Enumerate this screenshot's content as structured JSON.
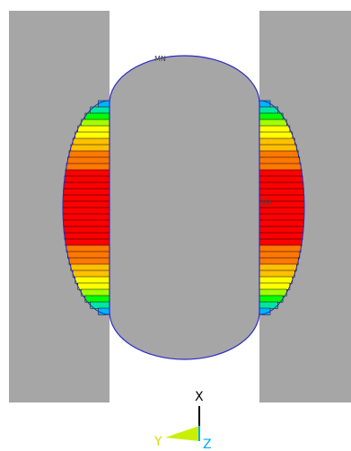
{
  "annotations": {
    "max_label": "MX",
    "mn_label": "MN"
  },
  "triad": {
    "x_label": "X",
    "y_label": "Y",
    "z_label": "Z",
    "x_color": "#000000",
    "y_color": "#d4e000",
    "z_color": "#00a8ff"
  },
  "colors": {
    "plate": "#a6a6a6",
    "cylinder": "#a6a6a6",
    "outline": "#2a2ac8",
    "background": "#ffffff",
    "contour_band_line": "#000000"
  },
  "contour_bands": [
    {
      "level": 0,
      "color": "#0000ff"
    },
    {
      "level": 1,
      "color": "#00b4ff"
    },
    {
      "level": 2,
      "color": "#00e6a0"
    },
    {
      "level": 3,
      "color": "#00ff00"
    },
    {
      "level": 4,
      "color": "#a0ff00"
    },
    {
      "level": 5,
      "color": "#ffff00"
    },
    {
      "level": 6,
      "color": "#ffc000"
    },
    {
      "level": 7,
      "color": "#ff7800"
    },
    {
      "level": 8,
      "color": "#ff0000"
    }
  ]
}
